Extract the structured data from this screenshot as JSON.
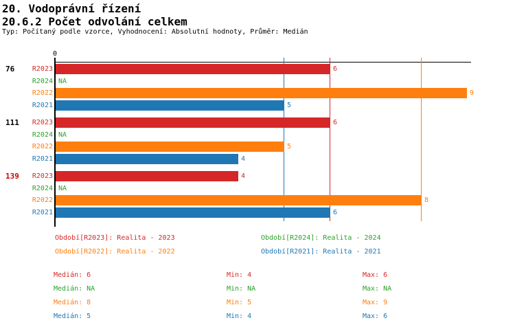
{
  "header": {
    "title1": "20. Vodoprávní řízení",
    "title2": "20.6.2 Počet odvolání celkem",
    "subtitle": "Typ: Počítaný podle vzorce, Vyhodnocení: Absolutní hodnoty, Průměr: Medián"
  },
  "colors": {
    "r2023": "#d62728",
    "r2024": "#2ca02c",
    "r2022": "#ff7f0e",
    "r2021": "#1f77b4",
    "highlight_group_label": "#cc0000",
    "axis": "#000000"
  },
  "chart_data": {
    "type": "bar",
    "orientation": "horizontal",
    "title": "20.6.2 Počet odvolání celkem",
    "axis": {
      "origin_label": "0",
      "min": 0,
      "max": 9.1,
      "gridlines": false
    },
    "series_order": [
      "R2023",
      "R2024",
      "R2022",
      "R2021"
    ],
    "categories": [
      "76",
      "111",
      "139"
    ],
    "groups": [
      {
        "label": "76",
        "label_color": "#000000",
        "bars": [
          {
            "series": "R2023",
            "value": 6,
            "display": "6",
            "color": "#d62728"
          },
          {
            "series": "R2024",
            "value": null,
            "display": "NA",
            "color": "#2ca02c"
          },
          {
            "series": "R2022",
            "value": 9,
            "display": "9",
            "color": "#ff7f0e"
          },
          {
            "series": "R2021",
            "value": 5,
            "display": "5",
            "color": "#1f77b4"
          }
        ]
      },
      {
        "label": "111",
        "label_color": "#000000",
        "bars": [
          {
            "series": "R2023",
            "value": 6,
            "display": "6",
            "color": "#d62728"
          },
          {
            "series": "R2024",
            "value": null,
            "display": "NA",
            "color": "#2ca02c"
          },
          {
            "series": "R2022",
            "value": 5,
            "display": "5",
            "color": "#ff7f0e"
          },
          {
            "series": "R2021",
            "value": 4,
            "display": "4",
            "color": "#1f77b4"
          }
        ]
      },
      {
        "label": "139",
        "label_color": "#cc0000",
        "bars": [
          {
            "series": "R2023",
            "value": 4,
            "display": "4",
            "color": "#d62728"
          },
          {
            "series": "R2024",
            "value": null,
            "display": "NA",
            "color": "#2ca02c"
          },
          {
            "series": "R2022",
            "value": 8,
            "display": "8",
            "color": "#ff7f0e"
          },
          {
            "series": "R2021",
            "value": 6,
            "display": "6",
            "color": "#1f77b4"
          }
        ]
      }
    ],
    "median_lines": [
      {
        "series": "R2021",
        "value": 5,
        "color": "#1f77b4"
      },
      {
        "series": "R2023",
        "value": 6,
        "color": "#d62728"
      },
      {
        "series": "R2022",
        "value": 8,
        "color": "#ff7f0e"
      }
    ]
  },
  "legend": [
    {
      "series": "R2023",
      "text": "Období[R2023]: Realita - 2023",
      "color": "#d62728"
    },
    {
      "series": "R2024",
      "text": "Období[R2024]: Realita - 2024",
      "color": "#2ca02c"
    },
    {
      "series": "R2022",
      "text": "Období[R2022]: Realita - 2022",
      "color": "#ff7f0e"
    },
    {
      "series": "R2021",
      "text": "Období[R2021]: Realita - 2021",
      "color": "#1f77b4"
    }
  ],
  "stats": [
    {
      "series": "R2023",
      "color": "#d62728",
      "median": "Medián: 6",
      "min": "Min: 4",
      "max": "Max: 6"
    },
    {
      "series": "R2024",
      "color": "#2ca02c",
      "median": "Medián: NA",
      "min": "Min: NA",
      "max": "Max: NA"
    },
    {
      "series": "R2022",
      "color": "#ff7f0e",
      "median": "Medián: 8",
      "min": "Min: 5",
      "max": "Max: 9"
    },
    {
      "series": "R2021",
      "color": "#1f77b4",
      "median": "Medián: 5",
      "min": "Min: 4",
      "max": "Max: 6"
    }
  ]
}
